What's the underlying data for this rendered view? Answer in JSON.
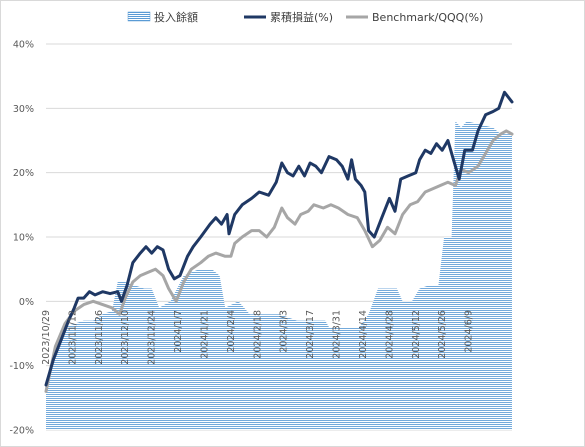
{
  "chart_data": {
    "type": "line",
    "legend_position": "top",
    "grid": true,
    "ylim": [
      -20,
      40
    ],
    "yticks": [
      -20,
      -10,
      0,
      10,
      20,
      30,
      40
    ],
    "ytick_labels": [
      "-20%",
      "-10%",
      "0%",
      "10%",
      "20%",
      "30%",
      "40%"
    ],
    "x_start": "2023-10-29",
    "x_end": "2024-07-02",
    "xtick_labels": [
      {
        "date": "2023-10-29",
        "label": "2023/10/29"
      },
      {
        "date": "2023-11-12",
        "label": "2023/11/12"
      },
      {
        "date": "2023-11-26",
        "label": "2023/11/26"
      },
      {
        "date": "2023-12-10",
        "label": "2023/12/10"
      },
      {
        "date": "2023-12-24",
        "label": "2023/12/24"
      },
      {
        "date": "2024-01-07",
        "label": "2024/1/7"
      },
      {
        "date": "2024-01-21",
        "label": "2024/1/21"
      },
      {
        "date": "2024-02-04",
        "label": "2024/2/4"
      },
      {
        "date": "2024-02-18",
        "label": "2024/2/18"
      },
      {
        "date": "2024-03-03",
        "label": "2024/3/3"
      },
      {
        "date": "2024-03-17",
        "label": "2024/3/17"
      },
      {
        "date": "2024-03-31",
        "label": "2024/3/31"
      },
      {
        "date": "2024-04-14",
        "label": "2024/4/14"
      },
      {
        "date": "2024-04-28",
        "label": "2024/4/28"
      },
      {
        "date": "2024-05-12",
        "label": "2024/5/12"
      },
      {
        "date": "2024-05-26",
        "label": "2024/5/26"
      },
      {
        "date": "2024-06-09",
        "label": "2024/6/9"
      }
    ],
    "series": [
      {
        "name": "投入餘額",
        "kind": "area",
        "color": "#5b9bd5",
        "points": [
          [
            "2023-10-29",
            -13
          ],
          [
            "2023-11-03",
            -7
          ],
          [
            "2023-11-08",
            -4
          ],
          [
            "2023-11-13",
            -3.5
          ],
          [
            "2023-11-18",
            -3
          ],
          [
            "2023-11-23",
            -3
          ],
          [
            "2023-11-28",
            -2
          ],
          [
            "2023-12-03",
            -1.5
          ],
          [
            "2023-12-06",
            3
          ],
          [
            "2023-12-10",
            3
          ],
          [
            "2023-12-15",
            2.5
          ],
          [
            "2023-12-20",
            2
          ],
          [
            "2023-12-24",
            2
          ],
          [
            "2023-12-28",
            -1
          ],
          [
            "2024-01-03",
            0
          ],
          [
            "2024-01-10",
            4
          ],
          [
            "2024-01-18",
            5
          ],
          [
            "2024-01-25",
            5
          ],
          [
            "2024-01-29",
            4
          ],
          [
            "2024-02-01",
            -1
          ],
          [
            "2024-02-08",
            0
          ],
          [
            "2024-02-14",
            -2
          ],
          [
            "2024-02-20",
            -2
          ],
          [
            "2024-03-01",
            -2
          ],
          [
            "2024-03-10",
            -3
          ],
          [
            "2024-03-20",
            -3
          ],
          [
            "2024-03-25",
            -3
          ],
          [
            "2024-03-27",
            -4
          ],
          [
            "2024-04-05",
            -4
          ],
          [
            "2024-04-12",
            -4
          ],
          [
            "2024-04-17",
            -2
          ],
          [
            "2024-04-22",
            2
          ],
          [
            "2024-05-02",
            2
          ],
          [
            "2024-05-05",
            0
          ],
          [
            "2024-05-10",
            0
          ],
          [
            "2024-05-14",
            2
          ],
          [
            "2024-05-19",
            2.5
          ],
          [
            "2024-05-24",
            2.5
          ],
          [
            "2024-05-27",
            10
          ],
          [
            "2024-05-31",
            10
          ],
          [
            "2024-06-02",
            28
          ],
          [
            "2024-06-05",
            27
          ],
          [
            "2024-06-08",
            28
          ],
          [
            "2024-06-15",
            27.5
          ],
          [
            "2024-06-22",
            27
          ],
          [
            "2024-06-26",
            26
          ],
          [
            "2024-07-02",
            26
          ]
        ]
      },
      {
        "name": "累積損益(%)",
        "kind": "line",
        "color": "#1f3864",
        "points": [
          [
            "2023-10-29",
            -13
          ],
          [
            "2023-11-02",
            -9
          ],
          [
            "2023-11-06",
            -6
          ],
          [
            "2023-11-10",
            -3
          ],
          [
            "2023-11-13",
            -1
          ],
          [
            "2023-11-15",
            0.5
          ],
          [
            "2023-11-18",
            0.5
          ],
          [
            "2023-11-21",
            1.5
          ],
          [
            "2023-11-24",
            1
          ],
          [
            "2023-11-28",
            1.5
          ],
          [
            "2023-12-02",
            1.2
          ],
          [
            "2023-12-06",
            1.5
          ],
          [
            "2023-12-08",
            0
          ],
          [
            "2023-12-11",
            2.5
          ],
          [
            "2023-12-14",
            6
          ],
          [
            "2023-12-18",
            7.5
          ],
          [
            "2023-12-21",
            8.5
          ],
          [
            "2023-12-24",
            7.5
          ],
          [
            "2023-12-27",
            8.5
          ],
          [
            "2023-12-30",
            8
          ],
          [
            "2024-01-02",
            5
          ],
          [
            "2024-01-05",
            3.5
          ],
          [
            "2024-01-08",
            4
          ],
          [
            "2024-01-12",
            7
          ],
          [
            "2024-01-15",
            8.5
          ],
          [
            "2024-01-19",
            10
          ],
          [
            "2024-01-24",
            12
          ],
          [
            "2024-01-27",
            13
          ],
          [
            "2024-01-30",
            12
          ],
          [
            "2024-02-02",
            13.5
          ],
          [
            "2024-02-03",
            10.5
          ],
          [
            "2024-02-06",
            13.5
          ],
          [
            "2024-02-10",
            15
          ],
          [
            "2024-02-15",
            16
          ],
          [
            "2024-02-19",
            17
          ],
          [
            "2024-02-24",
            16.5
          ],
          [
            "2024-02-28",
            18.5
          ],
          [
            "2024-03-02",
            21.5
          ],
          [
            "2024-03-05",
            20
          ],
          [
            "2024-03-08",
            19.5
          ],
          [
            "2024-03-11",
            21
          ],
          [
            "2024-03-14",
            19.5
          ],
          [
            "2024-03-17",
            21.5
          ],
          [
            "2024-03-20",
            21
          ],
          [
            "2024-03-23",
            20
          ],
          [
            "2024-03-27",
            22.5
          ],
          [
            "2024-03-31",
            22
          ],
          [
            "2024-04-03",
            21
          ],
          [
            "2024-04-06",
            19
          ],
          [
            "2024-04-08",
            22
          ],
          [
            "2024-04-10",
            19
          ],
          [
            "2024-04-13",
            18
          ],
          [
            "2024-04-15",
            17
          ],
          [
            "2024-04-17",
            11
          ],
          [
            "2024-04-20",
            10
          ],
          [
            "2024-04-24",
            13
          ],
          [
            "2024-04-28",
            16
          ],
          [
            "2024-05-01",
            14
          ],
          [
            "2024-05-04",
            19
          ],
          [
            "2024-05-08",
            19.5
          ],
          [
            "2024-05-12",
            20
          ],
          [
            "2024-05-14",
            22
          ],
          [
            "2024-05-17",
            23.5
          ],
          [
            "2024-05-20",
            23
          ],
          [
            "2024-05-23",
            24.5
          ],
          [
            "2024-05-26",
            23.5
          ],
          [
            "2024-05-29",
            25
          ],
          [
            "2024-06-01",
            22
          ],
          [
            "2024-06-04",
            19
          ],
          [
            "2024-06-07",
            23.5
          ],
          [
            "2024-06-11",
            23.5
          ],
          [
            "2024-06-14",
            26.5
          ],
          [
            "2024-06-18",
            29
          ],
          [
            "2024-06-22",
            29.5
          ],
          [
            "2024-06-25",
            30
          ],
          [
            "2024-06-28",
            32.5
          ],
          [
            "2024-07-02",
            31
          ]
        ]
      },
      {
        "name": "Benchmark/QQQ(%)",
        "kind": "line",
        "color": "#a6a6a6",
        "points": [
          [
            "2023-10-29",
            -14
          ],
          [
            "2023-11-03",
            -7
          ],
          [
            "2023-11-08",
            -3.5
          ],
          [
            "2023-11-13",
            -1.5
          ],
          [
            "2023-11-18",
            -0.5
          ],
          [
            "2023-11-23",
            0
          ],
          [
            "2023-11-28",
            -0.5
          ],
          [
            "2023-12-03",
            -1
          ],
          [
            "2023-12-07",
            -2
          ],
          [
            "2023-12-10",
            0.5
          ],
          [
            "2023-12-14",
            3
          ],
          [
            "2023-12-18",
            4
          ],
          [
            "2023-12-22",
            4.5
          ],
          [
            "2023-12-26",
            5
          ],
          [
            "2023-12-30",
            4
          ],
          [
            "2024-01-02",
            2
          ],
          [
            "2024-01-06",
            0
          ],
          [
            "2024-01-10",
            3
          ],
          [
            "2024-01-14",
            5
          ],
          [
            "2024-01-19",
            6
          ],
          [
            "2024-01-23",
            7
          ],
          [
            "2024-01-27",
            7.5
          ],
          [
            "2024-02-01",
            7
          ],
          [
            "2024-02-04",
            7
          ],
          [
            "2024-02-06",
            9
          ],
          [
            "2024-02-10",
            10
          ],
          [
            "2024-02-15",
            11
          ],
          [
            "2024-02-19",
            11
          ],
          [
            "2024-02-23",
            10
          ],
          [
            "2024-02-27",
            11.5
          ],
          [
            "2024-03-02",
            14.5
          ],
          [
            "2024-03-05",
            13
          ],
          [
            "2024-03-09",
            12
          ],
          [
            "2024-03-12",
            13.5
          ],
          [
            "2024-03-16",
            14
          ],
          [
            "2024-03-19",
            15
          ],
          [
            "2024-03-24",
            14.5
          ],
          [
            "2024-03-28",
            15
          ],
          [
            "2024-04-01",
            14.5
          ],
          [
            "2024-04-06",
            13.5
          ],
          [
            "2024-04-11",
            13
          ],
          [
            "2024-04-15",
            11
          ],
          [
            "2024-04-19",
            8.5
          ],
          [
            "2024-04-23",
            9.5
          ],
          [
            "2024-04-27",
            11.5
          ],
          [
            "2024-05-01",
            10.5
          ],
          [
            "2024-05-05",
            13.5
          ],
          [
            "2024-05-09",
            15
          ],
          [
            "2024-05-13",
            15.5
          ],
          [
            "2024-05-17",
            17
          ],
          [
            "2024-05-21",
            17.5
          ],
          [
            "2024-05-25",
            18
          ],
          [
            "2024-05-29",
            18.5
          ],
          [
            "2024-06-02",
            18
          ],
          [
            "2024-06-05",
            20.5
          ],
          [
            "2024-06-09",
            20
          ],
          [
            "2024-06-14",
            21
          ],
          [
            "2024-06-18",
            23
          ],
          [
            "2024-06-22",
            25
          ],
          [
            "2024-06-26",
            26
          ],
          [
            "2024-06-29",
            26.5
          ],
          [
            "2024-07-02",
            26
          ]
        ]
      }
    ]
  }
}
